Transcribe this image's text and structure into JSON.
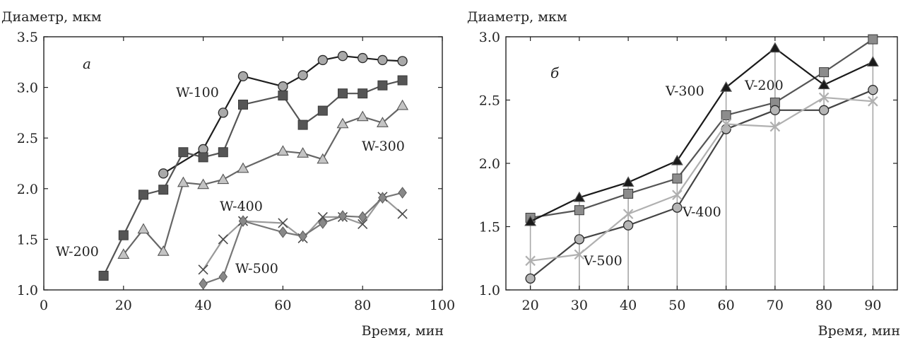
{
  "chart_data": [
    {
      "type": "line",
      "panel_label": "а",
      "ylabel": "Диаметр, мкм",
      "xlabel": "Время, мин",
      "xlim": [
        0,
        100
      ],
      "ylim": [
        1.0,
        3.5
      ],
      "xticks": [
        "0",
        "20",
        "40",
        "60",
        "80",
        "100"
      ],
      "yticks": [
        "1.0",
        "1.5",
        "2.0",
        "2.5",
        "3.0",
        "3.5"
      ],
      "grid": false,
      "series": [
        {
          "name": "W-100",
          "marker": "circle",
          "color": "#1f1f1f",
          "fill": "#a9a9a9",
          "x": [
            30,
            40,
            45,
            50,
            60,
            65,
            70,
            75,
            80,
            85,
            90
          ],
          "y": [
            2.15,
            2.39,
            2.75,
            3.11,
            3.01,
            3.12,
            3.27,
            3.31,
            3.29,
            3.27,
            3.26
          ]
        },
        {
          "name": "W-200",
          "marker": "square",
          "color": "#555555",
          "fill": "#555555",
          "x": [
            15,
            20,
            25,
            30,
            35,
            40,
            45,
            50,
            60,
            65,
            70,
            75,
            80,
            85,
            90
          ],
          "y": [
            1.14,
            1.54,
            1.94,
            1.99,
            2.36,
            2.31,
            2.36,
            2.83,
            2.92,
            2.63,
            2.77,
            2.94,
            2.94,
            3.02,
            3.07
          ]
        },
        {
          "name": "W-300",
          "marker": "triangle",
          "color": "#666666",
          "fill": "#c4c4c4",
          "x": [
            20,
            25,
            30,
            35,
            40,
            45,
            50,
            60,
            65,
            70,
            75,
            80,
            85,
            90
          ],
          "y": [
            1.35,
            1.6,
            1.38,
            2.06,
            2.04,
            2.09,
            2.2,
            2.37,
            2.35,
            2.29,
            2.64,
            2.71,
            2.65,
            2.82
          ]
        },
        {
          "name": "W-400",
          "marker": "cross",
          "color": "#999999",
          "fill": "#4a4a4a",
          "x": [
            40,
            45,
            50,
            60,
            65,
            70,
            75,
            80,
            85,
            90
          ],
          "y": [
            1.2,
            1.5,
            1.68,
            1.66,
            1.51,
            1.72,
            1.72,
            1.65,
            1.92,
            1.75
          ]
        },
        {
          "name": "W-500",
          "marker": "diamond",
          "color": "#777777",
          "fill": "#888888",
          "x": [
            40,
            45,
            50,
            60,
            65,
            70,
            75,
            80,
            85,
            90
          ],
          "y": [
            1.06,
            1.13,
            1.68,
            1.57,
            1.53,
            1.66,
            1.73,
            1.72,
            1.91,
            1.96
          ]
        }
      ]
    },
    {
      "type": "line",
      "panel_label": "б",
      "ylabel": "Диаметр, мкм",
      "xlabel": "Время, мин",
      "xlim": [
        15,
        95
      ],
      "ylim": [
        1.0,
        3.0
      ],
      "xticks": [
        "20",
        "30",
        "40",
        "50",
        "60",
        "70",
        "80",
        "90"
      ],
      "yticks": [
        "1.0",
        "1.5",
        "2.0",
        "2.5",
        "3.0"
      ],
      "grid": "vertical lines at data x values",
      "series": [
        {
          "name": "V-200",
          "marker": "square",
          "color": "#555555",
          "fill": "#8c8c8c",
          "x": [
            20,
            30,
            40,
            50,
            60,
            70,
            80,
            90
          ],
          "y": [
            1.57,
            1.63,
            1.76,
            1.88,
            2.38,
            2.48,
            2.72,
            2.98
          ]
        },
        {
          "name": "V-300",
          "marker": "triangle",
          "color": "#1a1a1a",
          "fill": "#1a1a1a",
          "x": [
            20,
            30,
            40,
            50,
            60,
            70,
            80,
            90
          ],
          "y": [
            1.54,
            1.73,
            1.85,
            2.02,
            2.6,
            2.91,
            2.62,
            2.8
          ]
        },
        {
          "name": "V-400",
          "marker": "circle",
          "color": "#444444",
          "fill": "#b5b5b5",
          "x": [
            20,
            30,
            40,
            50,
            60,
            70,
            80,
            90
          ],
          "y": [
            1.09,
            1.4,
            1.51,
            1.65,
            2.27,
            2.42,
            2.42,
            2.58
          ]
        },
        {
          "name": "V-500",
          "marker": "asterisk",
          "color": "#b0b0b0",
          "fill": "#b0b0b0",
          "x": [
            20,
            30,
            40,
            50,
            60,
            70,
            80,
            90
          ],
          "y": [
            1.23,
            1.28,
            1.6,
            1.75,
            2.31,
            2.29,
            2.52,
            2.49
          ]
        }
      ]
    }
  ]
}
